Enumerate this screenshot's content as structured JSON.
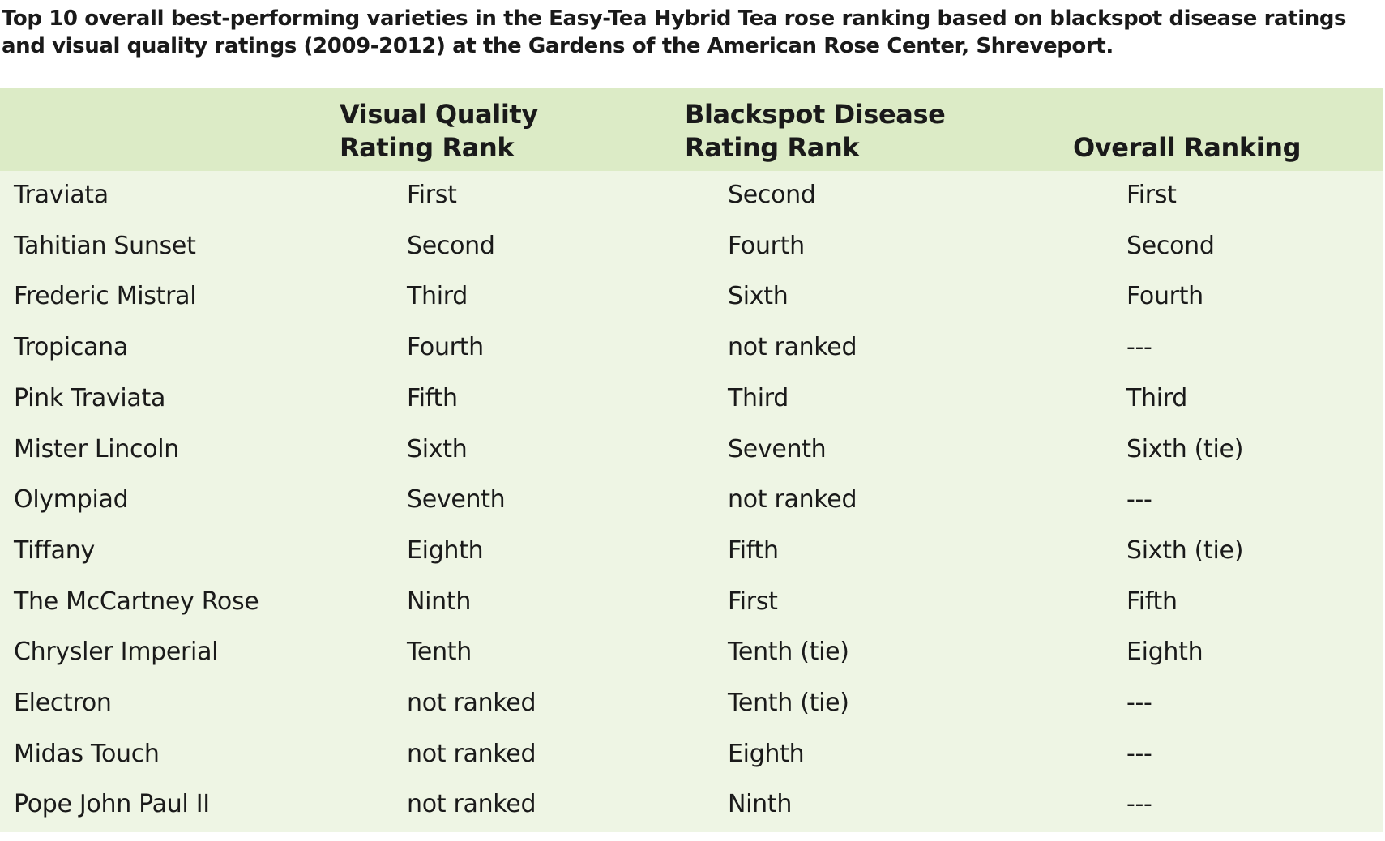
{
  "title": {
    "lines": [
      "Top 10 overall best-performing varieties in the Easy-Tea Hybrid Tea rose ranking based on blackspot disease ratings",
      "and visual quality ratings (2009-2012) at the Gardens of the American Rose Center, Shreveport."
    ]
  },
  "table": {
    "headers": [
      [
        "Visual Quality",
        "Rating Rank"
      ],
      [
        "Blackspot Disease",
        "Rating Rank"
      ],
      [
        "Overall Ranking"
      ]
    ],
    "rows": [
      [
        "Traviata",
        "First",
        "Second",
        "First"
      ],
      [
        "Tahitian Sunset",
        "Second",
        "Fourth",
        "Second"
      ],
      [
        "Frederic Mistral",
        "Third",
        "Sixth",
        "Fourth"
      ],
      [
        "Tropicana",
        "Fourth",
        "not ranked",
        "---"
      ],
      [
        "Pink Traviata",
        "Fifth",
        "Third",
        "Third"
      ],
      [
        "Mister Lincoln",
        "Sixth",
        "Seventh",
        "Sixth (tie)"
      ],
      [
        "Olympiad",
        "Seventh",
        "not ranked",
        "---"
      ],
      [
        "Tiffany",
        "Eighth",
        "Fifth",
        "Sixth (tie)"
      ],
      [
        "The McCartney Rose",
        "Ninth",
        "First",
        "Fifth"
      ],
      [
        "Chrysler Imperial",
        "Tenth",
        "Tenth (tie)",
        "Eighth"
      ],
      [
        "Electron",
        "not ranked",
        "Tenth (tie)",
        "---"
      ],
      [
        "Midas Touch",
        "not ranked",
        "Eighth",
        "---"
      ],
      [
        "Pope John Paul II",
        "not ranked",
        "Ninth",
        "---"
      ]
    ]
  }
}
